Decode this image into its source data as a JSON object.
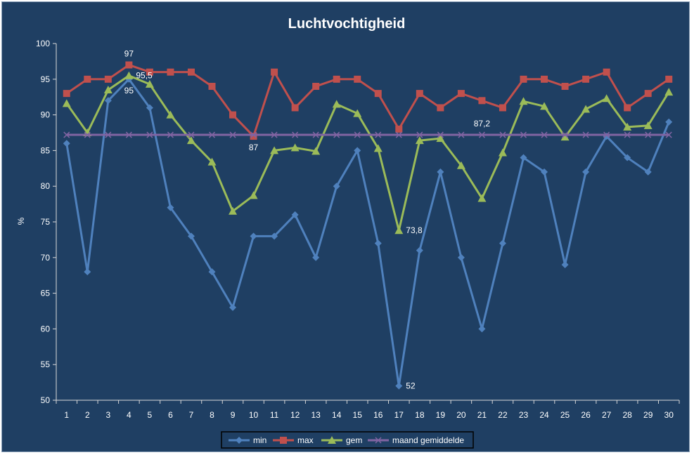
{
  "chart_data": {
    "type": "line",
    "title": "Luchtvochtigheid",
    "xlabel": "",
    "ylabel": "%",
    "ylim": [
      50,
      100
    ],
    "yticks": [
      50,
      55,
      60,
      65,
      70,
      75,
      80,
      85,
      90,
      95,
      100
    ],
    "grid": false,
    "legend_position": "bottom",
    "categories": [
      "1",
      "2",
      "3",
      "4",
      "5",
      "6",
      "7",
      "8",
      "9",
      "10",
      "11",
      "12",
      "13",
      "14",
      "15",
      "16",
      "17",
      "18",
      "19",
      "20",
      "21",
      "22",
      "23",
      "24",
      "25",
      "26",
      "27",
      "28",
      "29",
      "30"
    ],
    "series": [
      {
        "name": "min",
        "color": "#4f81bd",
        "marker": "diamond",
        "values": [
          86,
          68,
          92,
          95,
          91,
          77,
          73,
          68,
          63,
          73,
          73,
          76,
          70,
          80,
          85,
          72,
          52,
          71,
          82,
          70,
          60,
          72,
          84,
          82,
          69,
          82,
          87,
          84,
          82,
          89
        ]
      },
      {
        "name": "max",
        "color": "#c0504d",
        "marker": "square",
        "values": [
          93,
          95,
          95,
          97,
          96,
          96,
          96,
          94,
          90,
          87,
          96,
          91,
          94,
          95,
          95,
          93,
          88,
          93,
          91,
          93,
          92,
          91,
          95,
          95,
          94,
          95,
          96,
          91,
          93,
          95
        ]
      },
      {
        "name": "gem",
        "color": "#9bbb59",
        "marker": "triangle",
        "values": [
          91.6,
          87.5,
          93.5,
          95.5,
          94.3,
          90,
          86.4,
          83.4,
          76.5,
          78.7,
          85,
          85.4,
          84.9,
          91.5,
          90.2,
          85.3,
          73.8,
          86.4,
          86.7,
          82.9,
          78.3,
          84.7,
          91.9,
          91.2,
          86.9,
          90.8,
          92.3,
          88.3,
          88.5,
          93.2
        ]
      },
      {
        "name": "maand gemiddelde",
        "color": "#8064a2",
        "marker": "x",
        "values": [
          87.2,
          87.2,
          87.2,
          87.2,
          87.2,
          87.2,
          87.2,
          87.2,
          87.2,
          87.2,
          87.2,
          87.2,
          87.2,
          87.2,
          87.2,
          87.2,
          87.2,
          87.2,
          87.2,
          87.2,
          87.2,
          87.2,
          87.2,
          87.2,
          87.2,
          87.2,
          87.2,
          87.2,
          87.2,
          87.2
        ]
      }
    ],
    "annotations": [
      {
        "text": "97",
        "series": "max",
        "index": 3,
        "anchor": "above"
      },
      {
        "text": "95,5",
        "series": "gem",
        "index": 3,
        "anchor": "right"
      },
      {
        "text": "95",
        "series": "min",
        "index": 3,
        "anchor": "below"
      },
      {
        "text": "87",
        "series": "max",
        "index": 9,
        "anchor": "below"
      },
      {
        "text": "73,8",
        "series": "gem",
        "index": 16,
        "anchor": "right"
      },
      {
        "text": "52",
        "series": "min",
        "index": 16,
        "anchor": "right"
      },
      {
        "text": "87,2",
        "series": "maand gemiddelde",
        "index": 20,
        "anchor": "above"
      }
    ]
  }
}
